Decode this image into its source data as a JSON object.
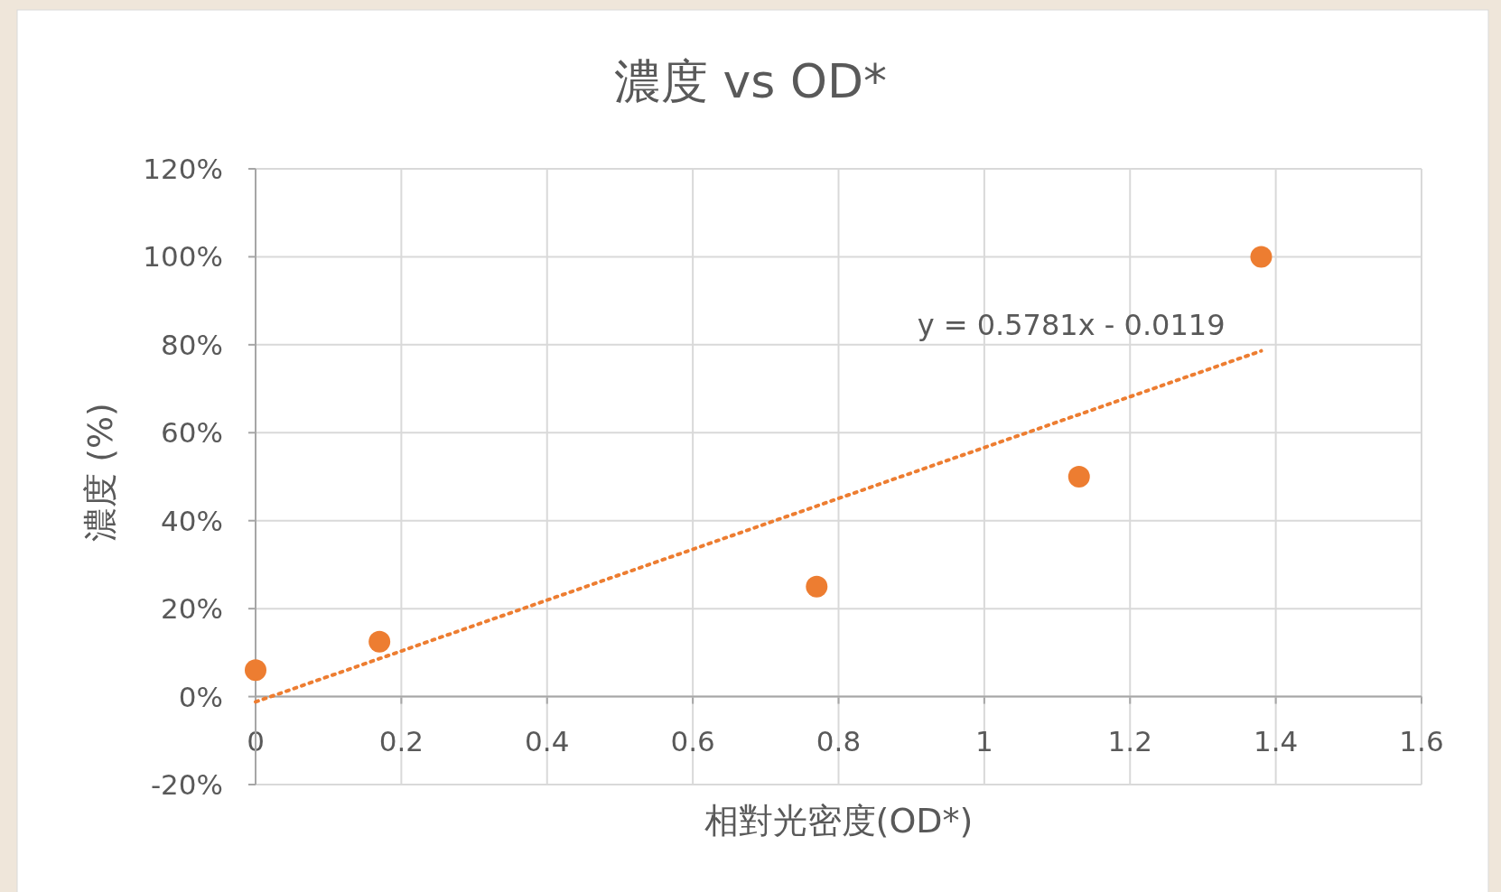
{
  "chart_data": {
    "type": "scatter",
    "title": "濃度 vs OD*",
    "xlabel": "相對光密度(OD*)",
    "ylabel": "濃度 (%)",
    "xlim": [
      0,
      1.6
    ],
    "xticks": [
      0,
      0.2,
      0.4,
      0.6,
      0.8,
      1,
      1.2,
      1.4,
      1.6
    ],
    "ylim": [
      -20,
      120
    ],
    "yticks": [
      {
        "value": -20,
        "label": "-20%"
      },
      {
        "value": 0,
        "label": "0%"
      },
      {
        "value": 20,
        "label": "20%"
      },
      {
        "value": 40,
        "label": "40%"
      },
      {
        "value": 60,
        "label": "60%"
      },
      {
        "value": 80,
        "label": "80%"
      },
      {
        "value": 100,
        "label": "100%"
      },
      {
        "value": 120,
        "label": "120%"
      }
    ],
    "grid": true,
    "marker": "circle",
    "series": [
      {
        "color": "#ed7d31",
        "x": [
          0,
          0.17,
          0.77,
          1.13,
          1.38
        ],
        "values": [
          6,
          12.5,
          25,
          50,
          100
        ]
      },
      {
        "type": "line",
        "line_style": "dotted",
        "marker": "none",
        "color": "#ed7d31",
        "x": [
          0,
          1.38
        ],
        "values": [
          -1.2,
          78.6
        ]
      }
    ],
    "annotations": [
      "y = 0.5781x - 0.0119"
    ]
  }
}
